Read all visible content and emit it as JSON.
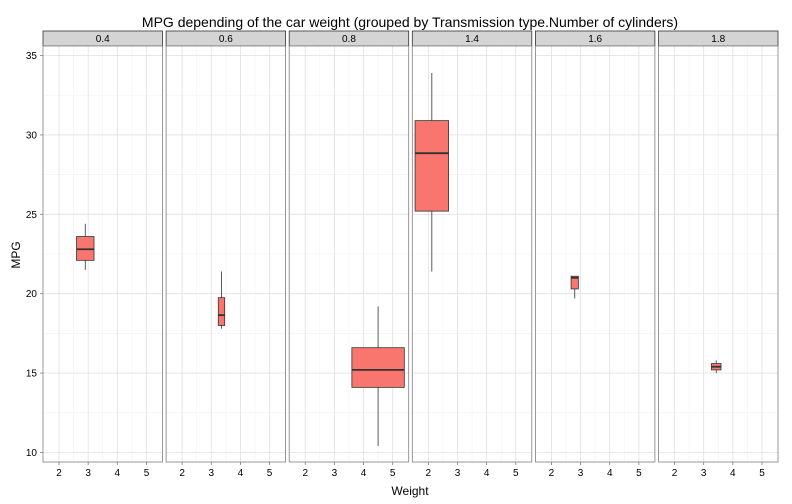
{
  "chart_data": {
    "type": "boxplot",
    "title": "MPG depending of the car weight (grouped by Transmission type.Number of cylinders)",
    "xlabel": "Weight",
    "ylabel": "MPG",
    "x_ticks": [
      2,
      3,
      4,
      5
    ],
    "xlim": [
      1.45,
      5.55
    ],
    "y_ticks": [
      10,
      15,
      20,
      25,
      30,
      35
    ],
    "ylim": [
      9.4,
      35.6
    ],
    "grid": true,
    "fill_color": "#F8766D",
    "strip_color": "#D4D4D4",
    "panels": [
      {
        "strip": "0.4",
        "box": {
          "x": 2.9,
          "width": 0.6,
          "whisker_low": 21.5,
          "q1": 22.1,
          "median": 22.8,
          "q3": 23.6,
          "whisker_high": 24.4
        }
      },
      {
        "strip": "0.6",
        "box": {
          "x": 3.35,
          "width": 0.22,
          "whisker_low": 17.8,
          "q1": 18.0,
          "median": 18.65,
          "q3": 19.75,
          "whisker_high": 21.4
        }
      },
      {
        "strip": "0.8",
        "box": {
          "x": 4.5,
          "width": 1.8,
          "whisker_low": 10.4,
          "q1": 14.1,
          "median": 15.2,
          "q3": 16.6,
          "whisker_high": 19.2
        }
      },
      {
        "strip": "1.4",
        "box": {
          "x": 2.12,
          "width": 1.15,
          "whisker_low": 21.4,
          "q1": 25.2,
          "median": 28.85,
          "q3": 30.9,
          "whisker_high": 33.9
        }
      },
      {
        "strip": "1.6",
        "box": {
          "x": 2.8,
          "width": 0.25,
          "whisker_low": 19.7,
          "q1": 20.3,
          "median": 21.0,
          "q3": 21.1,
          "whisker_high": 21.1
        }
      },
      {
        "strip": "1.8",
        "box": {
          "x": 3.43,
          "width": 0.33,
          "whisker_low": 15.0,
          "q1": 15.2,
          "median": 15.4,
          "q3": 15.6,
          "whisker_high": 15.8
        }
      }
    ]
  }
}
